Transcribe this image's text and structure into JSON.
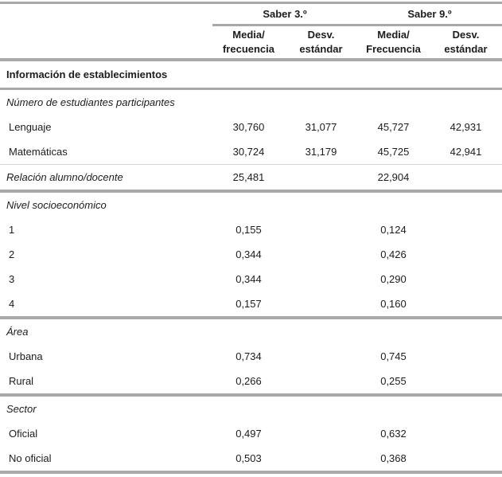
{
  "header": {
    "spanners": [
      {
        "label": "Saber 3.º"
      },
      {
        "label": "Saber 9.º"
      }
    ],
    "columns": [
      "Media/\nfrecuencia",
      "Desv.\nestándar",
      "Media/\nFrecuencia",
      "Desv.\nestándar"
    ]
  },
  "table": {
    "group_title": "Información de establecimientos",
    "sections": [
      {
        "title": "Número de estudiantes participantes",
        "divider": "none",
        "title_values": [
          "",
          "",
          "",
          ""
        ],
        "rows": [
          {
            "label": "Lenguaje",
            "values": [
              "30,760",
              "31,077",
              "45,727",
              "42,931"
            ]
          },
          {
            "label": "Matemáticas",
            "values": [
              "30,724",
              "31,179",
              "45,725",
              "42,941"
            ]
          }
        ]
      },
      {
        "title": "Relación alumno/docente",
        "divider": "thin",
        "title_values": [
          "25,481",
          "",
          "22,904",
          ""
        ],
        "rows": []
      },
      {
        "title": "Nivel socioeconómico",
        "divider": "thick",
        "title_values": [
          "",
          "",
          "",
          ""
        ],
        "rows": [
          {
            "label": "1",
            "values": [
              "0,155",
              "",
              "0,124",
              ""
            ]
          },
          {
            "label": "2",
            "values": [
              "0,344",
              "",
              "0,426",
              ""
            ]
          },
          {
            "label": "3",
            "values": [
              "0,344",
              "",
              "0,290",
              ""
            ]
          },
          {
            "label": "4",
            "values": [
              "0,157",
              "",
              "0,160",
              ""
            ]
          }
        ]
      },
      {
        "title": "Área",
        "divider": "thick",
        "title_values": [
          "",
          "",
          "",
          ""
        ],
        "rows": [
          {
            "label": "Urbana",
            "values": [
              "0,734",
              "",
              "0,745",
              ""
            ]
          },
          {
            "label": "Rural",
            "values": [
              "0,266",
              "",
              "0,255",
              ""
            ]
          }
        ]
      },
      {
        "title": "Sector",
        "divider": "thick",
        "title_values": [
          "",
          "",
          "",
          ""
        ],
        "rows": [
          {
            "label": "Oficial",
            "values": [
              "0,497",
              "",
              "0,632",
              ""
            ]
          },
          {
            "label": "No oficial",
            "values": [
              "0,503",
              "",
              "0,368",
              ""
            ]
          }
        ]
      }
    ]
  },
  "colors": {
    "rule_gray": "#a9a9a9",
    "rule_light": "#d6d6d6",
    "text": "#1c1c1e",
    "background": "#ffffff"
  }
}
